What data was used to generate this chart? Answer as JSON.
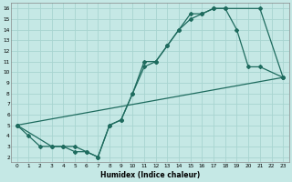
{
  "xlabel": "Humidex (Indice chaleur)",
  "bg_color": "#c5e8e5",
  "grid_color": "#a8d4d0",
  "line_color": "#1e6b5e",
  "xlim": [
    -0.5,
    23.5
  ],
  "ylim": [
    1.5,
    16.5
  ],
  "xticks": [
    0,
    1,
    2,
    3,
    4,
    5,
    6,
    7,
    8,
    9,
    10,
    11,
    12,
    13,
    14,
    15,
    16,
    17,
    18,
    19,
    20,
    21,
    22,
    23
  ],
  "yticks": [
    2,
    3,
    4,
    5,
    6,
    7,
    8,
    9,
    10,
    11,
    12,
    13,
    14,
    15,
    16
  ],
  "curve1_x": [
    0,
    1,
    2,
    3,
    4,
    5,
    6,
    7,
    8,
    9,
    10,
    11,
    12,
    13,
    14,
    15,
    16,
    17,
    18,
    21,
    23
  ],
  "curve1_y": [
    5,
    4,
    3,
    3,
    3,
    3,
    2.5,
    2,
    5,
    5.5,
    8,
    11,
    11,
    12.5,
    14,
    15.5,
    15.5,
    16,
    16,
    16,
    9.5
  ],
  "curve2_x": [
    0,
    3,
    4,
    5,
    6,
    7,
    8,
    9,
    10,
    11,
    12,
    13,
    14,
    15,
    16,
    17,
    18,
    19,
    20,
    21,
    23
  ],
  "curve2_y": [
    5,
    3,
    3,
    2.5,
    2.5,
    2,
    5,
    5.5,
    8,
    10.5,
    11,
    12.5,
    14,
    15,
    15.5,
    16,
    16,
    14,
    10.5,
    10.5,
    9.5
  ],
  "curve3_x": [
    0,
    23
  ],
  "curve3_y": [
    5,
    9.5
  ]
}
